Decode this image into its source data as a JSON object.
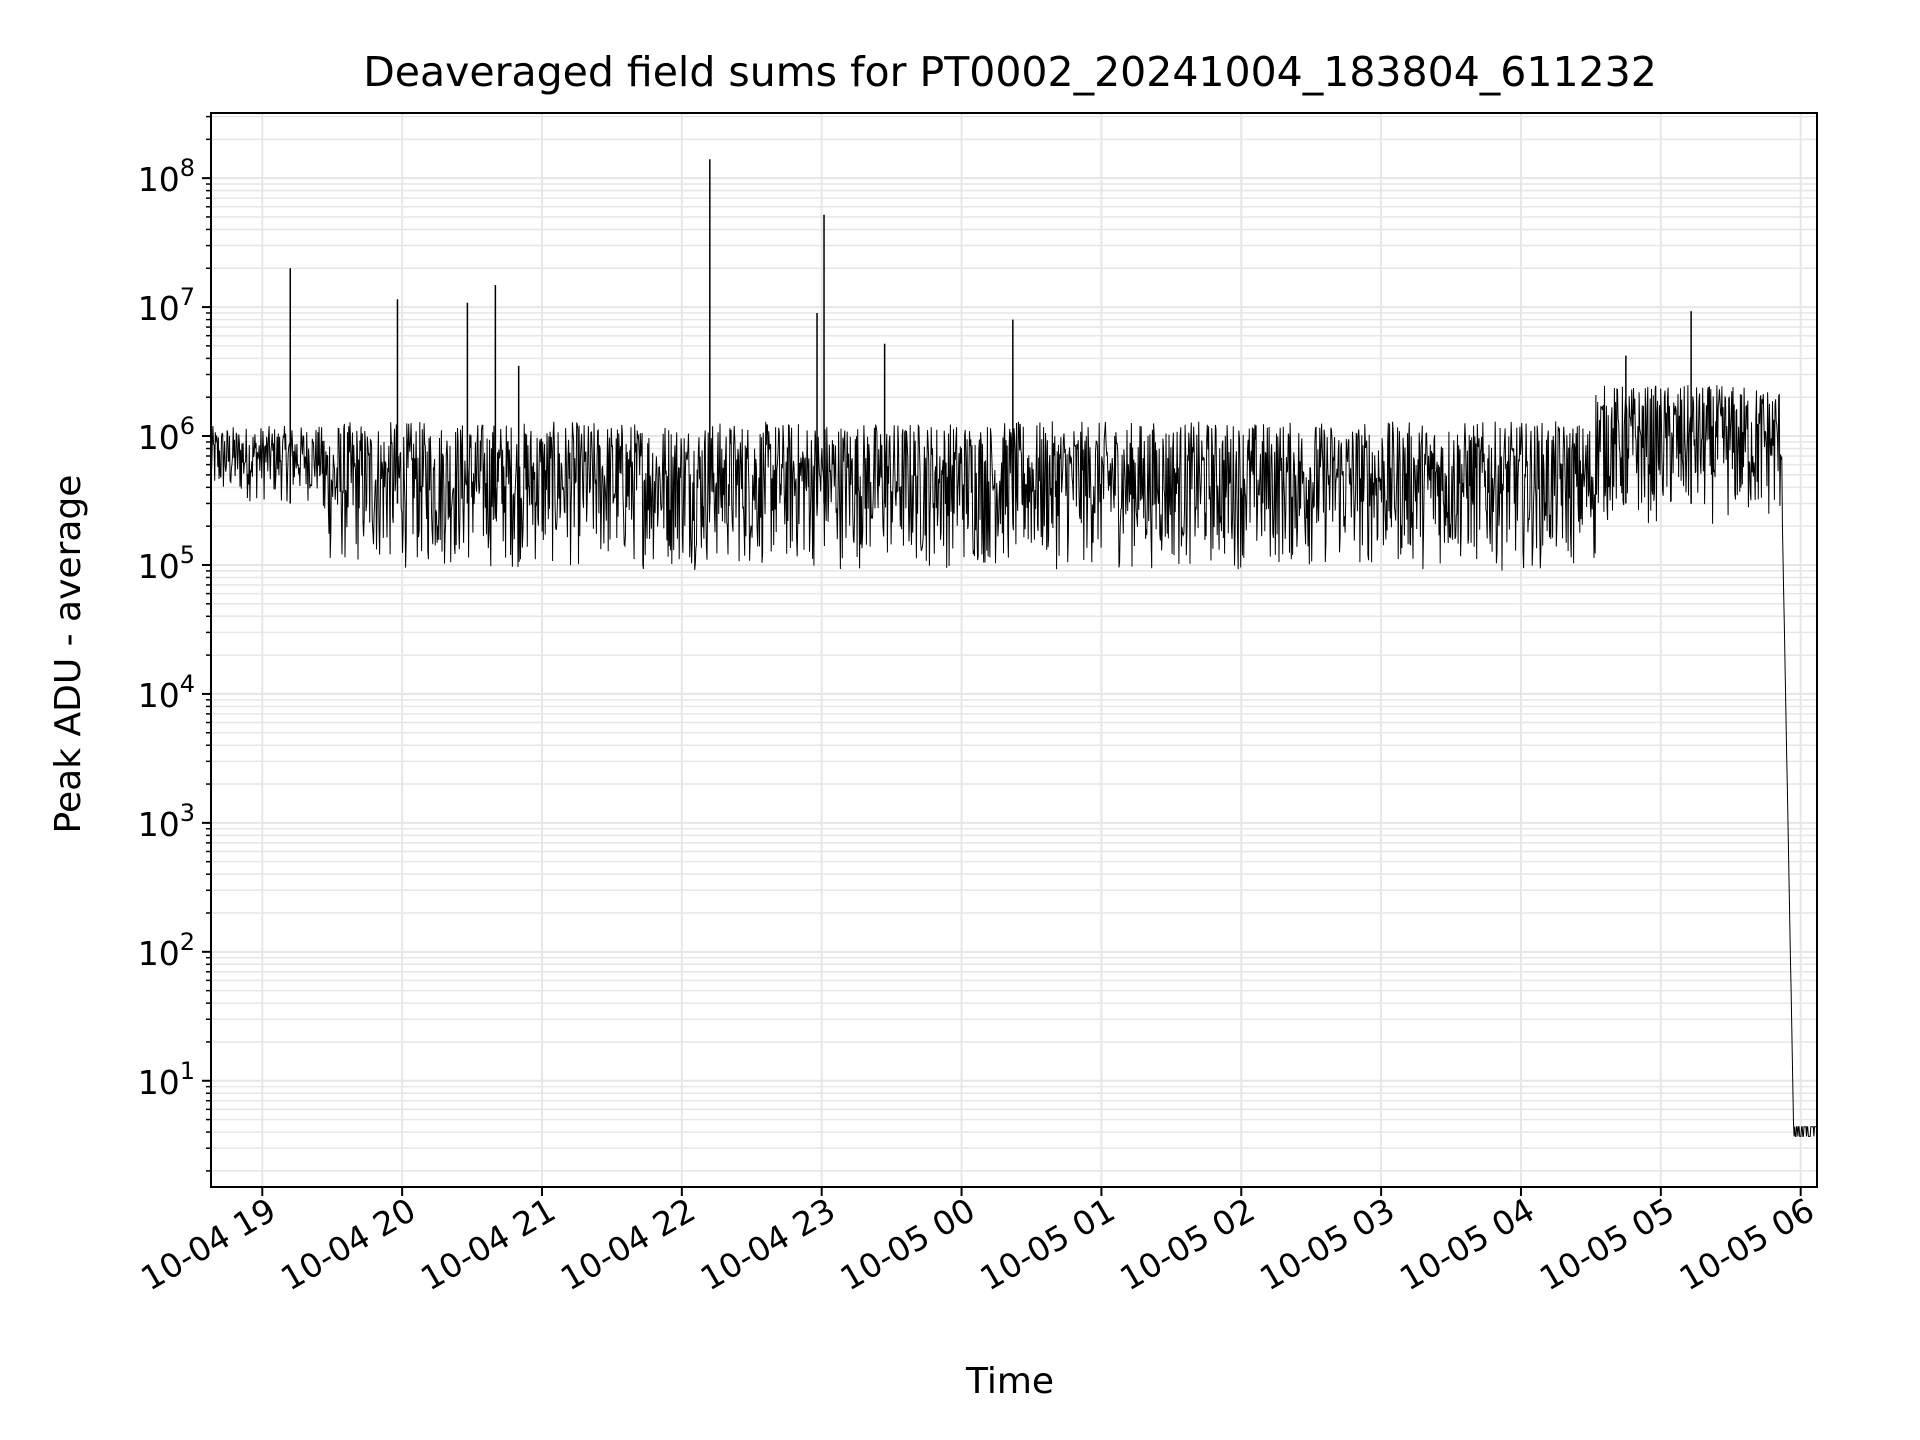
{
  "chart_data": {
    "type": "line",
    "title": "Deaveraged field sums for PT0002_20241004_183804_611232",
    "xlabel": "Time",
    "ylabel": "Peak ADU - average",
    "yscale": "log",
    "ylim": [
      1.5,
      320000000
    ],
    "xlim": [
      "2024-10-04 18:38",
      "2024-10-05 06:07"
    ],
    "grid": true,
    "line_color": "#000000",
    "grid_color": "#e6e6e6",
    "x_ticks": [
      "10-04 19",
      "10-04 20",
      "10-04 21",
      "10-04 22",
      "10-04 23",
      "10-05 00",
      "10-05 01",
      "10-05 02",
      "10-05 03",
      "10-05 04",
      "10-05 05",
      "10-05 06"
    ],
    "y_ticks": [
      {
        "base": "10",
        "exp": "1",
        "value": 10
      },
      {
        "base": "10",
        "exp": "2",
        "value": 100
      },
      {
        "base": "10",
        "exp": "3",
        "value": 1000
      },
      {
        "base": "10",
        "exp": "4",
        "value": 10000
      },
      {
        "base": "10",
        "exp": "5",
        "value": 100000
      },
      {
        "base": "10",
        "exp": "6",
        "value": 1000000
      },
      {
        "base": "10",
        "exp": "7",
        "value": 10000000
      },
      {
        "base": "10",
        "exp": "8",
        "value": 100000000
      }
    ],
    "series": [
      {
        "values_description_points": [
          {
            "x": "2024-10-04 18:38",
            "y": 450000
          },
          {
            "x": "2024-10-04 18:45",
            "y": 600000
          },
          {
            "x": "2024-10-04 18:52",
            "y": 1000000
          },
          {
            "x": "2024-10-04 19:05",
            "y": 350000
          },
          {
            "x": "2024-10-04 19:12",
            "y": 20000000
          },
          {
            "x": "2024-10-04 19:30",
            "y": 150000
          },
          {
            "x": "2024-10-04 19:58",
            "y": 11500000
          },
          {
            "x": "2024-10-04 20:00",
            "y": 80000
          },
          {
            "x": "2024-10-04 20:28",
            "y": 10800000
          },
          {
            "x": "2024-10-04 20:40",
            "y": 14800000
          },
          {
            "x": "2024-10-04 20:50",
            "y": 3500000
          },
          {
            "x": "2024-10-04 21:35",
            "y": 45000
          },
          {
            "x": "2024-10-04 22:12",
            "y": 140000000
          },
          {
            "x": "2024-10-04 22:58",
            "y": 9000000
          },
          {
            "x": "2024-10-04 23:01",
            "y": 52000000
          },
          {
            "x": "2024-10-04 23:27",
            "y": 5200000
          },
          {
            "x": "2024-10-05 00:22",
            "y": 8000000
          },
          {
            "x": "2024-10-05 02:40",
            "y": 2200000
          },
          {
            "x": "2024-10-05 03:25",
            "y": 50000
          },
          {
            "x": "2024-10-05 04:45",
            "y": 4200000
          },
          {
            "x": "2024-10-05 05:13",
            "y": 9300000
          },
          {
            "x": "2024-10-05 05:40",
            "y": 900000
          },
          {
            "x": "2024-10-05 05:52",
            "y": 300000
          },
          {
            "x": "2024-10-05 05:57",
            "y": 4
          },
          {
            "x": "2024-10-05 06:07",
            "y": 4
          }
        ]
      }
    ]
  }
}
